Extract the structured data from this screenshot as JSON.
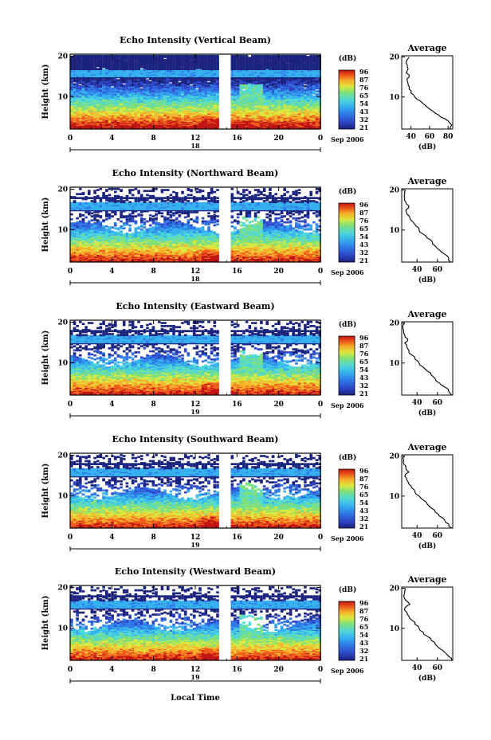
{
  "figure": {
    "xlabel": "Local Time",
    "ylabel": "Height (km)",
    "colorbar_title": "(dB)",
    "colorbar_ticks": [
      "96",
      "87",
      "76",
      "65",
      "54",
      "43",
      "32",
      "21"
    ],
    "avg_title": "Average",
    "avg_xlabel": "(dB)",
    "date_label": "Sep 2006",
    "x_ticks": [
      "0",
      "4",
      "8",
      "12",
      "16",
      "20",
      "0"
    ],
    "y_ticks": [
      "20",
      "10"
    ],
    "colormap": [
      "#1a237e",
      "#2d47c8",
      "#2e78e8",
      "#35b0ef",
      "#4fd8d6",
      "#7fe07a",
      "#d9e83f",
      "#f7b02a",
      "#ee5a1c",
      "#c21313"
    ]
  },
  "panels": [
    {
      "title": "Echo Intensity (Vertical Beam)",
      "day": "18",
      "colorbar_ticks": [
        "96",
        "87",
        "76",
        "65",
        "54",
        "43",
        "32",
        "21"
      ],
      "avg_ticks": [
        "40",
        "60",
        "80"
      ]
    },
    {
      "title": "Echo Intensity (Northward Beam)",
      "day": "18",
      "colorbar_ticks": [
        "96",
        "87",
        "76",
        "65",
        "54",
        "43",
        "32",
        "21"
      ],
      "avg_ticks": [
        "40",
        "60"
      ]
    },
    {
      "title": "Echo Intensity (Eastward Beam)",
      "day": "19",
      "colorbar_ticks": [
        "96",
        "87",
        "76",
        "65",
        "54",
        "43",
        "32",
        "21"
      ],
      "avg_ticks": [
        "40",
        "60"
      ]
    },
    {
      "title": "Echo Intensity (Southward Beam)",
      "day": "19",
      "colorbar_ticks": [
        "96",
        "87",
        "76",
        "65",
        "54",
        "43",
        "32",
        "21"
      ],
      "avg_ticks": [
        "40",
        "60"
      ]
    },
    {
      "title": "Echo Intensity (Westward Beam)",
      "day": "19",
      "colorbar_ticks": [
        "96",
        "87",
        "76",
        "65",
        "54",
        "43",
        "32",
        "21"
      ],
      "avg_ticks": [
        "40",
        "60"
      ]
    }
  ],
  "chart_data": [
    {
      "type": "heatmap",
      "title": "Echo Intensity (Vertical Beam)",
      "xlabel": "Local Time",
      "ylabel": "Height (km)",
      "xlim": [
        0,
        24
      ],
      "ylim": [
        2,
        20.5
      ],
      "data_gap_hours": [
        14.2,
        15.3
      ],
      "colorbar": {
        "label": "(dB)",
        "range": [
          21,
          96
        ]
      },
      "average_profile": {
        "title": "Average",
        "xlabel": "(dB)",
        "xlim": [
          30,
          85
        ],
        "height_km": [
          2,
          3,
          4,
          5,
          6,
          7,
          8,
          9,
          10,
          11,
          12,
          13,
          14,
          15,
          16,
          17,
          18,
          19,
          20
        ],
        "db": [
          82,
          84,
          80,
          72,
          66,
          60,
          55,
          50,
          44,
          40,
          38,
          37,
          36,
          38,
          35,
          37,
          36,
          35,
          38
        ]
      }
    },
    {
      "type": "heatmap",
      "title": "Echo Intensity (Northward Beam)",
      "xlabel": "Local Time",
      "ylabel": "Height (km)",
      "xlim": [
        0,
        24
      ],
      "ylim": [
        2,
        20.5
      ],
      "data_gap_hours": [
        14.2,
        15.3
      ],
      "colorbar": {
        "label": "(dB)",
        "range": [
          21,
          96
        ]
      },
      "average_profile": {
        "title": "Average",
        "xlabel": "(dB)",
        "xlim": [
          25,
          75
        ],
        "height_km": [
          2,
          3,
          4,
          5,
          6,
          7,
          8,
          9,
          10,
          11,
          12,
          13,
          14,
          15,
          16,
          17,
          18,
          19,
          20
        ],
        "db": [
          73,
          71,
          67,
          62,
          58,
          55,
          50,
          46,
          42,
          39,
          36,
          33,
          30,
          29,
          32,
          29,
          28,
          28,
          29
        ]
      }
    },
    {
      "type": "heatmap",
      "title": "Echo Intensity (Eastward Beam)",
      "xlabel": "Local Time",
      "ylabel": "Height (km)",
      "xlim": [
        0,
        24
      ],
      "ylim": [
        2,
        20.5
      ],
      "data_gap_hours": [
        14.2,
        15.3
      ],
      "colorbar": {
        "label": "(dB)",
        "range": [
          21,
          96
        ]
      },
      "average_profile": {
        "title": "Average",
        "xlabel": "(dB)",
        "xlim": [
          25,
          75
        ],
        "height_km": [
          2,
          3,
          4,
          5,
          6,
          7,
          8,
          9,
          10,
          11,
          12,
          13,
          14,
          15,
          16,
          17,
          18,
          19,
          20
        ],
        "db": [
          74,
          71,
          67,
          62,
          58,
          54,
          50,
          46,
          42,
          38,
          35,
          32,
          30,
          28,
          31,
          28,
          27,
          26,
          28
        ]
      }
    },
    {
      "type": "heatmap",
      "title": "Echo Intensity (Southward Beam)",
      "xlabel": "Local Time",
      "ylabel": "Height (km)",
      "xlim": [
        0,
        24
      ],
      "ylim": [
        2,
        20.5
      ],
      "data_gap_hours": [
        14.2,
        15.3
      ],
      "colorbar": {
        "label": "(dB)",
        "range": [
          21,
          96
        ]
      },
      "average_profile": {
        "title": "Average",
        "xlabel": "(dB)",
        "xlim": [
          25,
          75
        ],
        "height_km": [
          2,
          3,
          4,
          5,
          6,
          7,
          8,
          9,
          10,
          11,
          12,
          13,
          14,
          15,
          16,
          17,
          18,
          19,
          20
        ],
        "db": [
          74,
          71,
          67,
          62,
          58,
          54,
          50,
          46,
          42,
          38,
          35,
          32,
          30,
          28,
          32,
          29,
          27,
          27,
          28
        ]
      }
    },
    {
      "type": "heatmap",
      "title": "Echo Intensity (Westward Beam)",
      "xlabel": "Local Time",
      "ylabel": "Height (km)",
      "xlim": [
        0,
        24
      ],
      "ylim": [
        2,
        20.5
      ],
      "data_gap_hours": [
        14.2,
        15.3
      ],
      "colorbar": {
        "label": "(dB)",
        "range": [
          21,
          96
        ]
      },
      "average_profile": {
        "title": "Average",
        "xlabel": "(dB)",
        "xlim": [
          25,
          75
        ],
        "height_km": [
          2,
          3,
          4,
          5,
          6,
          7,
          8,
          9,
          10,
          11,
          12,
          13,
          14,
          15,
          16,
          17,
          18,
          19,
          20
        ],
        "db": [
          74,
          71,
          67,
          62,
          58,
          54,
          50,
          46,
          42,
          38,
          35,
          32,
          30,
          28,
          33,
          29,
          27,
          28,
          29
        ]
      }
    }
  ]
}
